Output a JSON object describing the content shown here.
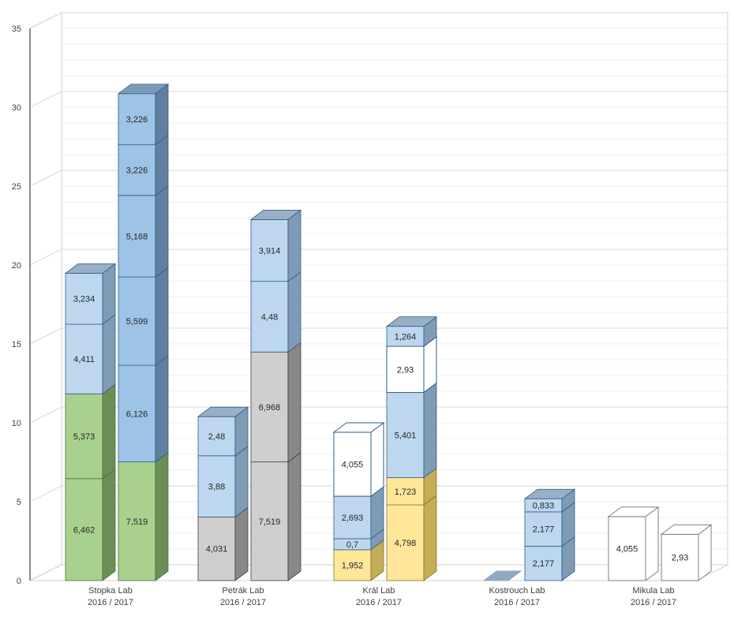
{
  "chart_data": {
    "type": "bar",
    "subtype": "3d-stacked-column",
    "ylim": [
      0,
      35
    ],
    "y_ticks": [
      "0",
      "5",
      "10",
      "15",
      "20",
      "25",
      "30",
      "35"
    ],
    "grid": true,
    "colors": {
      "green": "#a9d18e",
      "light_blue": "#bdd7ee",
      "blue": "#9dc3e6",
      "gray": "#d0cece",
      "yellow": "#ffe699",
      "outline": "#ffffff"
    },
    "groups": [
      {
        "category": [
          "Stopka Lab",
          "2016 / 2017"
        ],
        "columns": [
          {
            "segments": [
              {
                "value": 6.462,
                "label": "6,462",
                "color": "green"
              },
              {
                "value": 5.373,
                "label": "5,373",
                "color": "green"
              },
              {
                "value": 4.411,
                "label": "4,411",
                "color": "light_blue"
              },
              {
                "value": 3.234,
                "label": "3,234",
                "color": "light_blue"
              }
            ]
          },
          {
            "segments": [
              {
                "value": 7.519,
                "label": "7,519",
                "color": "green"
              },
              {
                "value": 6.126,
                "label": "6,126",
                "color": "blue"
              },
              {
                "value": 5.599,
                "label": "5,599",
                "color": "blue"
              },
              {
                "value": 5.168,
                "label": "5,168",
                "color": "blue"
              },
              {
                "value": 3.226,
                "label": "3,226",
                "color": "blue"
              },
              {
                "value": 3.226,
                "label": "3,226",
                "color": "blue"
              }
            ]
          }
        ]
      },
      {
        "category": [
          "Petrák Lab",
          "2016 / 2017"
        ],
        "columns": [
          {
            "segments": [
              {
                "value": 4.031,
                "label": "4,031",
                "color": "gray"
              },
              {
                "value": 3.88,
                "label": "3,88",
                "color": "light_blue"
              },
              {
                "value": 2.48,
                "label": "2,48",
                "color": "light_blue"
              }
            ]
          },
          {
            "segments": [
              {
                "value": 7.519,
                "label": "7,519",
                "color": "gray"
              },
              {
                "value": 6.968,
                "label": "6,968",
                "color": "gray"
              },
              {
                "value": 4.48,
                "label": "4,48",
                "color": "light_blue"
              },
              {
                "value": 3.914,
                "label": "3,914",
                "color": "light_blue"
              }
            ]
          }
        ]
      },
      {
        "category": [
          "Král Lab",
          "2016 / 2017"
        ],
        "columns": [
          {
            "segments": [
              {
                "value": 1.952,
                "label": "1,952",
                "color": "yellow"
              },
              {
                "value": 0.7,
                "label": "0,7",
                "color": "light_blue"
              },
              {
                "value": 2.693,
                "label": "2,693",
                "color": "light_blue"
              },
              {
                "value": 4.055,
                "label": "4,055",
                "color": "outline"
              }
            ]
          },
          {
            "segments": [
              {
                "value": 4.798,
                "label": "4,798",
                "color": "yellow"
              },
              {
                "value": 1.723,
                "label": "1,723",
                "color": "yellow"
              },
              {
                "value": 5.401,
                "label": "5,401",
                "color": "light_blue"
              },
              {
                "value": 2.93,
                "label": "2,93",
                "color": "outline"
              },
              {
                "value": 1.264,
                "label": "1,264",
                "color": "light_blue"
              }
            ]
          }
        ]
      },
      {
        "category": [
          "Kostrouch Lab",
          "2016 / 2017"
        ],
        "columns": [
          {
            "segments": []
          },
          {
            "segments": [
              {
                "value": 2.177,
                "label": "2,177",
                "color": "light_blue"
              },
              {
                "value": 2.177,
                "label": "2,177",
                "color": "light_blue"
              },
              {
                "value": 0.833,
                "label": "0,833",
                "color": "light_blue"
              }
            ]
          }
        ]
      },
      {
        "category": [
          "Mikula Lab",
          "2016 / 2017"
        ],
        "columns": [
          {
            "segments": [
              {
                "value": 4.055,
                "label": "4,055",
                "color": "outline"
              }
            ]
          },
          {
            "segments": [
              {
                "value": 2.93,
                "label": "2,93",
                "color": "outline"
              }
            ]
          }
        ]
      }
    ]
  }
}
